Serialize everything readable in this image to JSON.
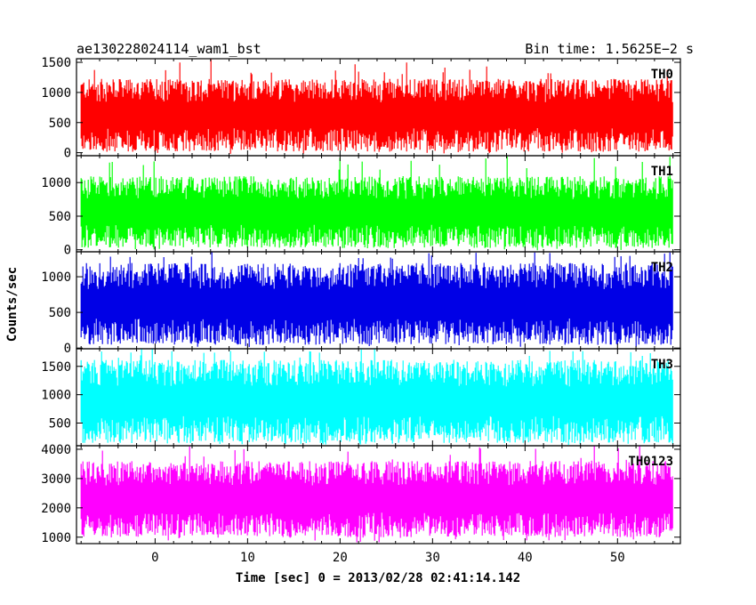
{
  "header": {
    "left": "ae130228024114_wam1_bst",
    "right": "Bin time: 1.5625E−2 s"
  },
  "chart_data": {
    "type": "line",
    "title": "ae130228024114_wam1_bst",
    "subtitle": "Bin time: 1.5625E−2 s",
    "xlabel": "Time [sec] 0 = 2013/02/28 02:41:14.142",
    "ylabel": "Counts/sec",
    "xlim": [
      -8.5,
      56.8
    ],
    "xticks": [
      0,
      10,
      20,
      30,
      40,
      50
    ],
    "data_xrange": [
      -8.0,
      56.0
    ],
    "grid": false,
    "series": [
      {
        "name": "TH0",
        "color": "#ff0000",
        "ylim": [
          -50,
          1560
        ],
        "yticks": [
          0,
          500,
          1000,
          1500
        ],
        "baseline": 620,
        "typical_min": 90,
        "typical_max": 1300,
        "peak": 1560
      },
      {
        "name": "TH1",
        "color": "#00ff00",
        "ylim": [
          -30,
          1400
        ],
        "yticks": [
          0,
          500,
          1000
        ],
        "baseline": 560,
        "typical_min": 80,
        "typical_max": 1150,
        "peak": 1400
      },
      {
        "name": "TH2",
        "color": "#0000e6",
        "ylim": [
          -10,
          1350
        ],
        "yticks": [
          0,
          500,
          1000
        ],
        "baseline": 620,
        "typical_min": 100,
        "typical_max": 1250,
        "peak": 1350
      },
      {
        "name": "TH3",
        "color": "#00ffff",
        "ylim": [
          100,
          1810
        ],
        "yticks": [
          500,
          1000,
          1500
        ],
        "baseline": 880,
        "typical_min": 180,
        "typical_max": 1650,
        "peak": 1810
      },
      {
        "name": "TH0123",
        "color": "#ff00ff",
        "ylim": [
          780,
          4120
        ],
        "yticks": [
          1000,
          2000,
          3000,
          4000
        ],
        "baseline": 2300,
        "typical_min": 1000,
        "typical_max": 3600,
        "peak": 4120
      }
    ]
  }
}
